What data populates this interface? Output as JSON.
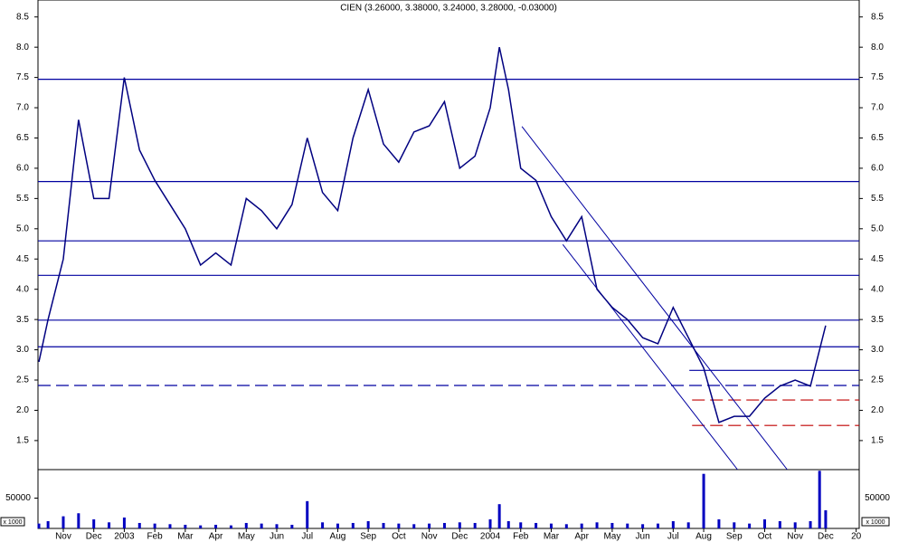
{
  "chart_data": [
    {
      "type": "line",
      "title": "CIEN (3.26000, 3.38000, 3.24000, 3.28000, -0.03000)",
      "x": [
        0.2,
        0.5,
        1,
        1.5,
        2,
        2.5,
        3,
        3.5,
        4,
        4.5,
        5,
        5.5,
        6,
        6.5,
        7,
        7.5,
        8,
        8.5,
        9,
        9.5,
        10,
        10.5,
        11,
        11.5,
        12,
        12.5,
        13,
        13.5,
        14,
        14.5,
        15,
        15.3,
        15.6,
        16,
        16.5,
        17,
        17.5,
        18,
        18.5,
        19,
        19.5,
        20,
        20.5,
        21,
        21.5,
        22,
        22.5,
        23,
        23.5,
        24,
        24.5,
        25,
        25.5,
        25.8,
        26
      ],
      "values": [
        2.8,
        3.5,
        4.5,
        6.8,
        5.5,
        5.5,
        7.5,
        6.3,
        5.8,
        5.4,
        5.0,
        4.4,
        4.6,
        4.4,
        5.5,
        5.3,
        5.0,
        5.4,
        6.5,
        5.6,
        5.3,
        6.5,
        7.3,
        6.4,
        6.1,
        6.6,
        6.7,
        7.1,
        6.0,
        6.2,
        7.0,
        8.0,
        7.3,
        6.0,
        5.8,
        5.2,
        4.8,
        5.2,
        4.0,
        3.7,
        3.5,
        3.2,
        3.1,
        3.7,
        3.2,
        2.7,
        1.8,
        1.9,
        1.9,
        2.2,
        2.4,
        2.5,
        2.4,
        3.0,
        3.4
      ],
      "color": "#000080",
      "xlim": [
        0.17,
        27.1
      ],
      "ylim": [
        1.02,
        8.78
      ],
      "yticks": [
        1.5,
        {
          "value": 2,
          "label": "2.0"
        },
        2.5,
        {
          "value": 3,
          "label": "3.0"
        },
        3.5,
        {
          "value": 4,
          "label": "4.0"
        },
        4.5,
        {
          "value": 5,
          "label": "5.0"
        },
        5.5,
        {
          "value": 6,
          "label": "6.0"
        },
        6.5,
        {
          "value": 7,
          "label": "7.0"
        },
        7.5,
        {
          "value": 8,
          "label": "8.0"
        },
        8.5
      ],
      "xticks": [
        {
          "value": 1,
          "label": "Nov"
        },
        {
          "value": 2,
          "label": "Dec"
        },
        {
          "value": 3,
          "label": "2003"
        },
        {
          "value": 4,
          "label": "Feb"
        },
        {
          "value": 5,
          "label": "Mar"
        },
        {
          "value": 6,
          "label": "Apr"
        },
        {
          "value": 7,
          "label": "May"
        },
        {
          "value": 8,
          "label": "Jun"
        },
        {
          "value": 9,
          "label": "Jul"
        },
        {
          "value": 10,
          "label": "Aug"
        },
        {
          "value": 11,
          "label": "Sep"
        },
        {
          "value": 12,
          "label": "Oct"
        },
        {
          "value": 13,
          "label": "Nov"
        },
        {
          "value": 14,
          "label": "Dec"
        },
        {
          "value": 15,
          "label": "2004"
        },
        {
          "value": 16,
          "label": "Feb"
        },
        {
          "value": 17,
          "label": "Mar"
        },
        {
          "value": 18,
          "label": "Apr"
        },
        {
          "value": 19,
          "label": "May"
        },
        {
          "value": 20,
          "label": "Jun"
        },
        {
          "value": 21,
          "label": "Jul"
        },
        {
          "value": 22,
          "label": "Aug"
        },
        {
          "value": 23,
          "label": "Sep"
        },
        {
          "value": 24,
          "label": "Oct"
        },
        {
          "value": 25,
          "label": "Nov"
        },
        {
          "value": 26,
          "label": "Dec"
        },
        {
          "value": 27,
          "label": "20"
        }
      ],
      "levels": [
        {
          "value": 7.47,
          "color": "#0000a0",
          "dashed": false
        },
        {
          "value": 5.78,
          "color": "#0000a0",
          "dashed": false
        },
        {
          "value": 4.8,
          "color": "#0000a0",
          "dashed": false
        },
        {
          "value": 4.23,
          "color": "#0000a0",
          "dashed": false
        },
        {
          "value": 3.49,
          "color": "#0000a0",
          "dashed": false
        },
        {
          "value": 3.05,
          "color": "#0000a0",
          "dashed": false
        },
        {
          "value": 2.66,
          "color": "#0000a0",
          "dashed": false,
          "from": 21.53
        },
        {
          "value": 2.41,
          "color": "#0000a0",
          "dashed": true
        },
        {
          "value": 2.17,
          "color": "#c00000",
          "dashed": true,
          "from": 21.62
        },
        {
          "value": 1.75,
          "color": "#c00000",
          "dashed": true,
          "from": 21.62
        }
      ],
      "channel_lines": [
        {
          "x": [
            16.04,
            24.74
          ],
          "y": [
            6.69,
            1.02
          ],
          "color": "#0000a0"
        },
        {
          "x": [
            17.38,
            23.11
          ],
          "y": [
            4.74,
            1.02
          ],
          "color": "#0000a0"
        }
      ]
    },
    {
      "type": "bar",
      "unit_label": "x 1000",
      "x": [
        0.2,
        0.5,
        1,
        1.5,
        2,
        2.5,
        3,
        3.5,
        4,
        4.5,
        5,
        5.5,
        6,
        6.5,
        7,
        7.5,
        8,
        8.5,
        9,
        9.5,
        10,
        10.5,
        11,
        11.5,
        12,
        12.5,
        13,
        13.5,
        14,
        14.5,
        15,
        15.3,
        15.6,
        16,
        16.5,
        17,
        17.5,
        18,
        18.5,
        19,
        19.5,
        20,
        20.5,
        21,
        21.5,
        22,
        22.5,
        23,
        23.5,
        24,
        24.5,
        25,
        25.5,
        25.8,
        26
      ],
      "values": [
        8000,
        12000,
        20000,
        25000,
        15000,
        10000,
        18000,
        9000,
        8000,
        7000,
        6000,
        5000,
        6000,
        5000,
        9000,
        8000,
        7000,
        6000,
        45000,
        10000,
        8000,
        9000,
        12000,
        9000,
        8000,
        7000,
        8000,
        9000,
        10000,
        9000,
        15000,
        40000,
        12000,
        10000,
        9000,
        8000,
        7000,
        8000,
        10000,
        9000,
        8000,
        7000,
        8000,
        12000,
        10000,
        90000,
        15000,
        10000,
        8000,
        15000,
        12000,
        10000,
        12000,
        95000,
        30000
      ],
      "color": "#0000c0",
      "ylim": [
        0,
        97000
      ],
      "yticks": [
        50000
      ]
    }
  ]
}
